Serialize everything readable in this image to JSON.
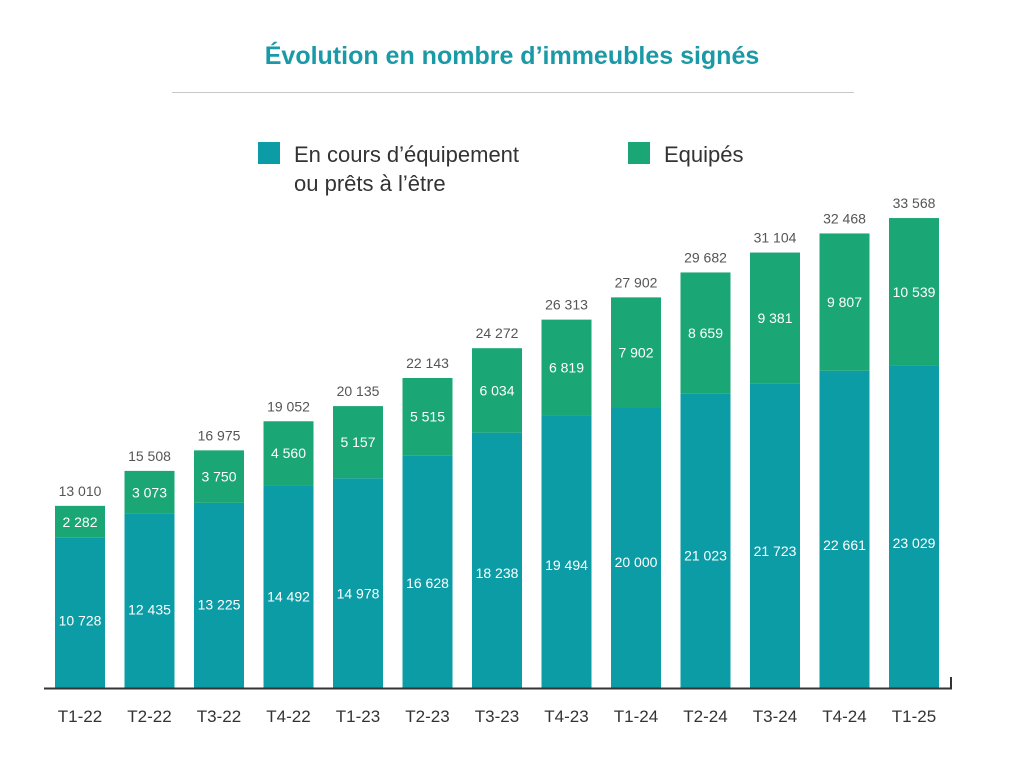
{
  "colors": {
    "title": "#1a9aa6",
    "teal": "#0b9ca5",
    "green": "#1aa775",
    "axis": "#333333",
    "total_label": "#555555",
    "inner_label": "#ffffff"
  },
  "chart_data": {
    "type": "bar",
    "stacked": true,
    "title": "Évolution en nombre d’immeubles signés",
    "categories": [
      "T1-22",
      "T2-22",
      "T3-22",
      "T4-22",
      "T1-23",
      "T2-23",
      "T3-23",
      "T4-23",
      "T1-24",
      "T2-24",
      "T3-24",
      "T4-24",
      "T1-25"
    ],
    "series": [
      {
        "name": "En cours d’équipement\nou prêts à l’être",
        "color": "#0b9ca5",
        "values": [
          10728,
          12435,
          13225,
          14492,
          14978,
          16628,
          18238,
          19494,
          20000,
          21023,
          21723,
          22661,
          23029
        ],
        "labels": [
          "10 728",
          "12 435",
          "13 225",
          "14 492",
          "14 978",
          "16 628",
          "18 238",
          "19 494",
          "20 000",
          "21 023",
          "21 723",
          "22 661",
          "23 029"
        ]
      },
      {
        "name": "Equipés",
        "color": "#1aa775",
        "values": [
          2282,
          3073,
          3750,
          4560,
          5157,
          5515,
          6034,
          6819,
          7902,
          8659,
          9381,
          9807,
          10539
        ],
        "labels": [
          "2 282",
          "3 073",
          "3 750",
          "4 560",
          "5 157",
          "5 515",
          "6 034",
          "6 819",
          "7 902",
          "8 659",
          "9 381",
          "9 807",
          "10 539"
        ]
      }
    ],
    "totals": [
      "13 010",
      "15 508",
      "16 975",
      "19 052",
      "20 135",
      "22 143",
      "24 272",
      "26 313",
      "27 902",
      "29 682",
      "31 104",
      "32 468",
      "33 568"
    ],
    "ylim": [
      0,
      36000
    ],
    "grid": false,
    "legend_position": "top"
  }
}
